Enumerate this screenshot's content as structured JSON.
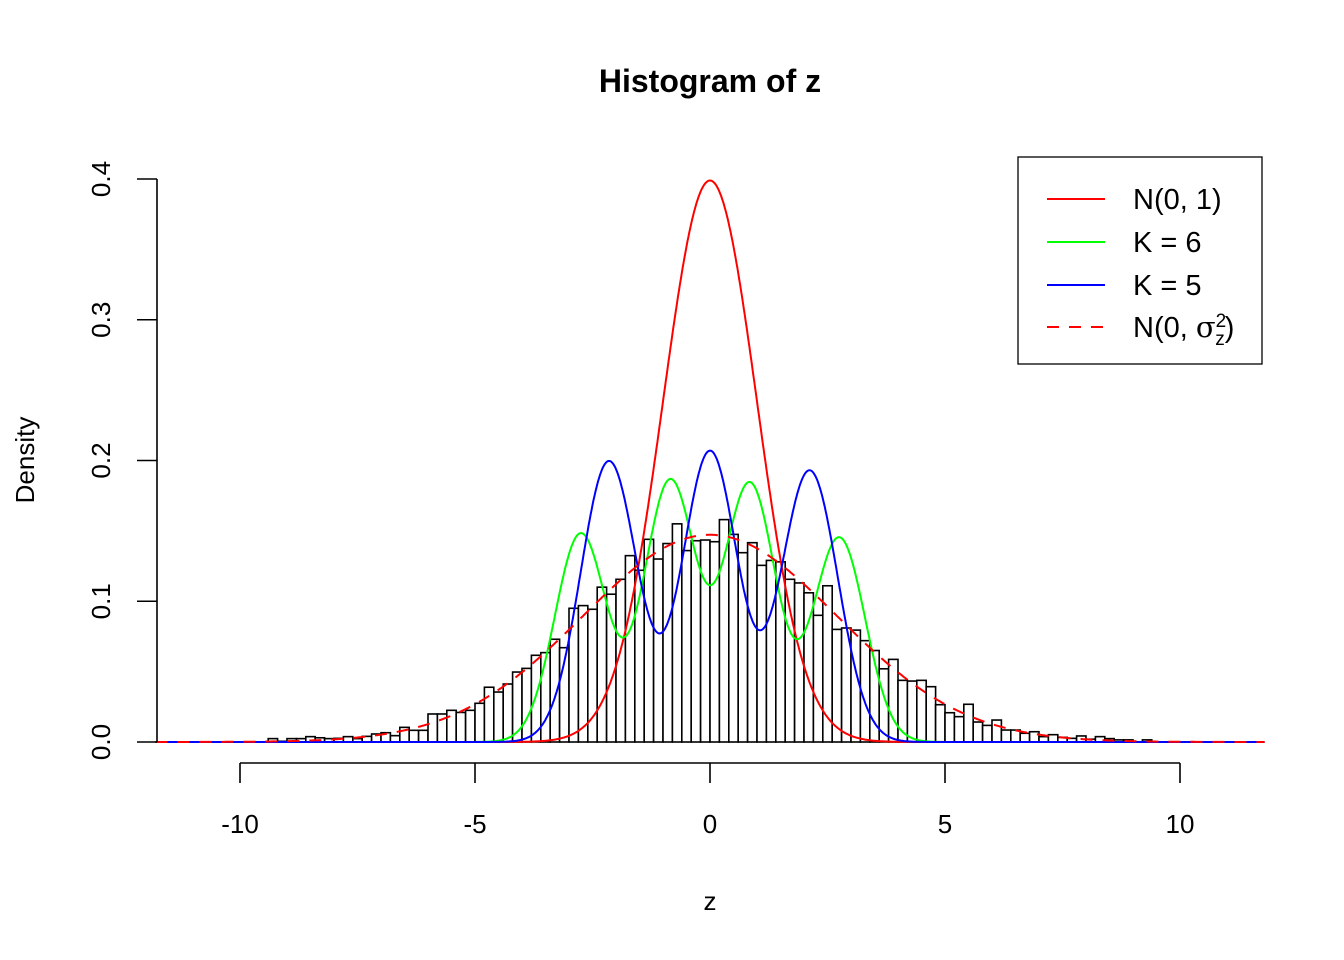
{
  "chart_data": {
    "type": "bar",
    "title": "Histogram of z",
    "xlabel": "z",
    "ylabel": "Density",
    "xlim": [
      -11.8,
      11.8
    ],
    "ylim": [
      0,
      0.4
    ],
    "xticks": [
      -10,
      -5,
      0,
      5,
      10
    ],
    "xtick_labels": [
      "-10",
      "-5",
      "0",
      "5",
      "10"
    ],
    "yticks": [
      0,
      0.1,
      0.2,
      0.3,
      0.4
    ],
    "ytick_labels": [
      "0.0",
      "0.1",
      "0.2",
      "0.3",
      "0.4"
    ],
    "grid": false,
    "histogram": {
      "bin_start": -10,
      "bin_width": 0.2,
      "density": [
        0,
        0,
        0,
        0.0024,
        0.0005,
        0.0024,
        0.0024,
        0.0038,
        0.003,
        0.0024,
        0.0026,
        0.0038,
        0.0024,
        0.004,
        0.0057,
        0.0066,
        0.0045,
        0.0104,
        0.0083,
        0.0083,
        0.0199,
        0.0199,
        0.0225,
        0.021,
        0.0225,
        0.0275,
        0.0389,
        0.0355,
        0.0412,
        0.0497,
        0.0523,
        0.0616,
        0.0635,
        0.073,
        0.067,
        0.095,
        0.0969,
        0.0943,
        0.11,
        0.105,
        0.1156,
        0.1324,
        0.122,
        0.144,
        0.13,
        0.141,
        0.155,
        0.136,
        0.143,
        0.1435,
        0.1423,
        0.158,
        0.1475,
        0.1345,
        0.1416,
        0.1255,
        0.129,
        0.128,
        0.1156,
        0.113,
        0.106,
        0.09,
        0.111,
        0.08,
        0.081,
        0.0795,
        0.072,
        0.065,
        0.052,
        0.0587,
        0.0438,
        0.0433,
        0.0438,
        0.0393,
        0.0265,
        0.0208,
        0.018,
        0.0268,
        0.0142,
        0.0118,
        0.0156,
        0.0085,
        0.0085,
        0.0062,
        0.0073,
        0.0038,
        0.0052,
        0.0033,
        0.0026,
        0.0043,
        0.002,
        0.0038,
        0.0024,
        0.0015,
        0.0015,
        0,
        0.0015
      ]
    },
    "series": [
      {
        "name": "N(0, 1)",
        "label_parts": [
          "N(0, 1)"
        ],
        "color": "#ff0000",
        "dash": false,
        "components": [
          {
            "mean": 0,
            "sd": 1,
            "weight": 1
          }
        ]
      },
      {
        "name": "K = 6",
        "label_parts": [
          "K = 6"
        ],
        "color": "#00ff00",
        "dash": false,
        "components": [
          {
            "mean": -2.75,
            "sd": 0.55,
            "weight": 0.204
          },
          {
            "mean": -0.85,
            "sd": 0.55,
            "weight": 0.255
          },
          {
            "mean": 0.85,
            "sd": 0.55,
            "weight": 0.252
          },
          {
            "mean": 2.75,
            "sd": 0.55,
            "weight": 0.2
          }
        ]
      },
      {
        "name": "K = 5",
        "label_parts": [
          "K = 5"
        ],
        "color": "#0000ff",
        "dash": false,
        "components": [
          {
            "mean": -2.15,
            "sd": 0.6,
            "weight": 0.3
          },
          {
            "mean": 0,
            "sd": 0.58,
            "weight": 0.3
          },
          {
            "mean": 2.12,
            "sd": 0.6,
            "weight": 0.29
          }
        ]
      },
      {
        "name": "N(0, σz²)",
        "label_parts": [
          "N",
          "0, ",
          "σ",
          "z",
          "2"
        ],
        "color": "#ff0000",
        "dash": true,
        "components": [
          {
            "mean": 0,
            "sd": 2.71,
            "weight": 1
          }
        ]
      }
    ],
    "legend_position": "top-right"
  }
}
